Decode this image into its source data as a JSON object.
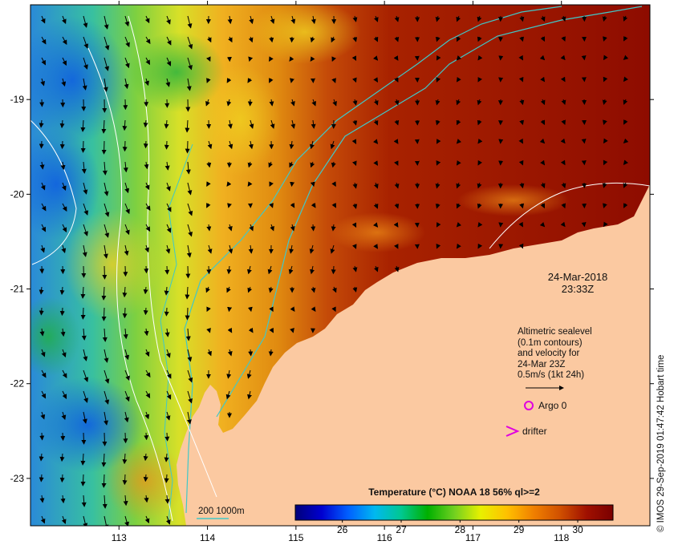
{
  "map": {
    "date": "24-Mar-2018",
    "time": "23:33Z",
    "colors": {
      "land": "#fbc9a1",
      "contour_line": "#ffffff",
      "isobath_line": "#40c8c8",
      "argo": "#e000e0",
      "drifter": "#e000e0"
    },
    "x_ticks": [
      "113",
      "114",
      "115",
      "116",
      "117",
      "118"
    ],
    "y_ticks": [
      "-19",
      "-20",
      "-21",
      "-22",
      "-23"
    ],
    "x_range": [
      112.0,
      119.0
    ],
    "y_range": [
      -23.5,
      -18.0
    ]
  },
  "legend": {
    "lines": [
      "Altimetric sealevel",
      "(0.1m contours)",
      "and velocity for",
      "24-Mar 23Z",
      "0.5m/s (1kt 24h)"
    ],
    "argo_label": "Argo 0",
    "drifter_label": "drifter",
    "depth_label": "200  1000m"
  },
  "colorbar": {
    "title": "Temperature (°C) NOAA 18 56% ql>=2",
    "ticks": [
      "26",
      "27",
      "28",
      "29",
      "30"
    ],
    "range": [
      25.2,
      30.6
    ],
    "colors": [
      "#00007a",
      "#0000d0",
      "#0060ff",
      "#00b8f0",
      "#00c890",
      "#00b000",
      "#70d020",
      "#e8f000",
      "#ffc000",
      "#f08000",
      "#d05000",
      "#a01000",
      "#7a0000"
    ]
  },
  "credit": "© IMOS 29-Sep-2019 01:47:42 Hobart time"
}
